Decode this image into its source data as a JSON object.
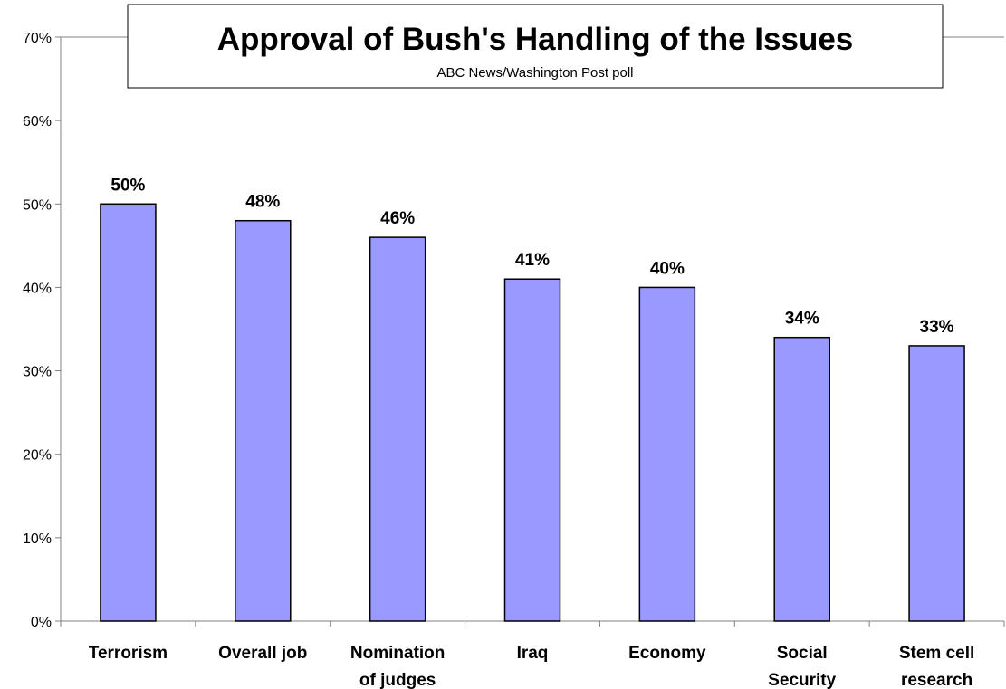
{
  "chart_data": {
    "type": "bar",
    "title": "Approval of Bush's Handling of the Issues",
    "subtitle": "ABC News/Washington Post poll",
    "categories": [
      [
        "Terrorism"
      ],
      [
        "Overall job"
      ],
      [
        "Nomination",
        "of judges"
      ],
      [
        "Iraq"
      ],
      [
        "Economy"
      ],
      [
        "Social",
        "Security"
      ],
      [
        "Stem cell",
        "research"
      ]
    ],
    "values": [
      50,
      48,
      46,
      41,
      40,
      34,
      33
    ],
    "data_labels": [
      "50%",
      "48%",
      "46%",
      "41%",
      "40%",
      "34%",
      "33%"
    ],
    "ylim": [
      0,
      70
    ],
    "yticks": [
      0,
      10,
      20,
      30,
      40,
      50,
      60,
      70
    ],
    "ytick_labels": [
      "0%",
      "10%",
      "20%",
      "30%",
      "40%",
      "50%",
      "60%",
      "70%"
    ],
    "xlabel": "",
    "ylabel": "",
    "grid": false,
    "legend": "none",
    "bar_color": "#9999ff",
    "bar_stroke": "#000000"
  }
}
